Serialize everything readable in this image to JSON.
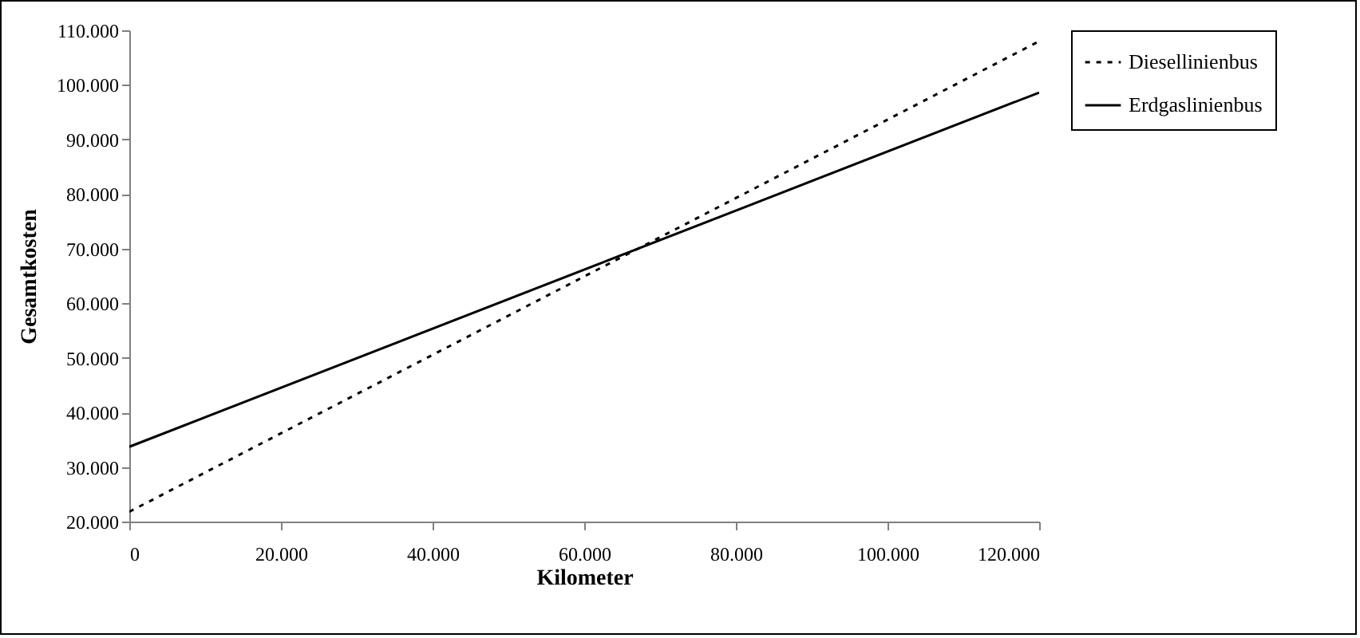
{
  "chart_data": {
    "type": "line",
    "xlabel": "Kilometer",
    "ylabel": "Gesamtkosten",
    "x": [
      0,
      120000
    ],
    "series": [
      {
        "name": "Diesellinienbus",
        "color": "#000000",
        "line_style": "dotted",
        "values": [
          21800,
          108000
        ]
      },
      {
        "name": "Erdgaslinienbus",
        "color": "#000000",
        "line_style": "solid",
        "values": [
          33700,
          98600
        ]
      }
    ],
    "xlim": [
      0,
      120000
    ],
    "ylim": [
      20000,
      110000
    ],
    "xticks": [
      0,
      {
        "value": 20000,
        "label": "20.000"
      },
      {
        "value": 40000,
        "label": "40.000"
      },
      {
        "value": 60000,
        "label": "60.000"
      },
      {
        "value": 80000,
        "label": "80.000"
      },
      {
        "value": 100000,
        "label": "100.000"
      },
      {
        "value": 120000,
        "label": "120.000"
      }
    ],
    "yticks": [
      {
        "value": 20000,
        "label": "20.000"
      },
      {
        "value": 30000,
        "label": "30.000"
      },
      {
        "value": 40000,
        "label": "40.000"
      },
      {
        "value": 50000,
        "label": "50.000"
      },
      {
        "value": 60000,
        "label": "60.000"
      },
      {
        "value": 70000,
        "label": "70.000"
      },
      {
        "value": 80000,
        "label": "80.000"
      },
      {
        "value": 90000,
        "label": "90.000"
      },
      {
        "value": 100000,
        "label": "100.000"
      },
      {
        "value": 110000,
        "label": "110.000"
      }
    ],
    "grid": false,
    "legend": "right",
    "marker": "none"
  }
}
